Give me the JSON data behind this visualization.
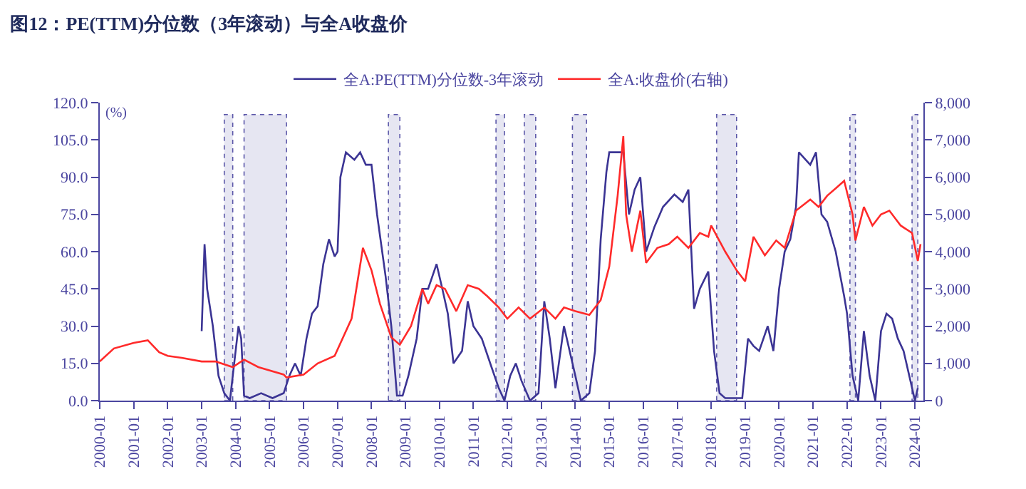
{
  "chart_data": {
    "type": "line",
    "title": "图12：PE(TTM)分位数（3年滚动）与全A收盘价",
    "ylabel": "(%)",
    "legend": "top",
    "grid": false,
    "line_style": "solid",
    "marker": "none",
    "xlim": [
      "2000-01",
      "2024-04"
    ],
    "xticks": [
      "2000-01",
      "2001-01",
      "2002-01",
      "2003-01",
      "2004-01",
      "2005-01",
      "2006-01",
      "2007-01",
      "2008-01",
      "2009-01",
      "2010-01",
      "2011-01",
      "2012-01",
      "2013-01",
      "2014-01",
      "2015-01",
      "2016-01",
      "2017-01",
      "2018-01",
      "2019-01",
      "2020-01",
      "2021-01",
      "2022-01",
      "2023-01",
      "2024-01"
    ],
    "ylim": [
      0,
      120
    ],
    "yticks": [
      {
        "value": 0,
        "label": "0.0"
      },
      {
        "value": 15,
        "label": "15.0"
      },
      {
        "value": 30,
        "label": "30.0"
      },
      {
        "value": 45,
        "label": "45.0"
      },
      {
        "value": 60,
        "label": "60.0"
      },
      {
        "value": 75,
        "label": "75.0"
      },
      {
        "value": 90,
        "label": "90.0"
      },
      {
        "value": 105,
        "label": "105.0"
      },
      {
        "value": 120,
        "label": "120.0"
      }
    ],
    "y2lim": [
      0,
      8000
    ],
    "y2ticks": [
      0,
      {
        "value": 1000,
        "label": "1,000"
      },
      {
        "value": 2000,
        "label": "2,000"
      },
      {
        "value": 3000,
        "label": "3,000"
      },
      {
        "value": 4000,
        "label": "4,000"
      },
      {
        "value": 5000,
        "label": "5,000"
      },
      {
        "value": 6000,
        "label": "6,000"
      },
      {
        "value": 7000,
        "label": "7,000"
      },
      {
        "value": 8000,
        "label": "8,000"
      }
    ],
    "bands": [
      {
        "axis": "x",
        "from": "2003-09",
        "to": "2003-12",
        "color": "#e6e6f2"
      },
      {
        "axis": "x",
        "from": "2004-04",
        "to": "2005-07",
        "color": "#e6e6f2"
      },
      {
        "axis": "x",
        "from": "2008-07",
        "to": "2008-11",
        "color": "#e6e6f2"
      },
      {
        "axis": "x",
        "from": "2011-09",
        "to": "2011-12",
        "color": "#e6e6f2"
      },
      {
        "axis": "x",
        "from": "2012-07",
        "to": "2012-11",
        "color": "#e6e6f2"
      },
      {
        "axis": "x",
        "from": "2013-12",
        "to": "2014-05",
        "color": "#e6e6f2"
      },
      {
        "axis": "x",
        "from": "2018-03",
        "to": "2018-10",
        "color": "#e6e6f2"
      },
      {
        "axis": "x",
        "from": "2022-02",
        "to": "2022-04",
        "color": "#e6e6f2"
      },
      {
        "axis": "x",
        "from": "2023-12",
        "to": "2024-02",
        "color": "#e6e6f2"
      }
    ],
    "series": [
      {
        "name": "全A:PE(TTM)分位数-3年滚动",
        "color": "#3b3494",
        "x": [
          "2003-01",
          "2003-02",
          "2003-03",
          "2003-05",
          "2003-07",
          "2003-09",
          "2003-11",
          "2004-01",
          "2004-02",
          "2004-03",
          "2004-04",
          "2004-06",
          "2004-10",
          "2005-02",
          "2005-06",
          "2005-08",
          "2005-10",
          "2005-12",
          "2006-02",
          "2006-04",
          "2006-06",
          "2006-08",
          "2006-10",
          "2006-12",
          "2007-01",
          "2007-02",
          "2007-04",
          "2007-07",
          "2007-09",
          "2007-11",
          "2008-01",
          "2008-03",
          "2008-06",
          "2008-08",
          "2008-10",
          "2008-12",
          "2009-02",
          "2009-05",
          "2009-07",
          "2009-09",
          "2009-12",
          "2010-02",
          "2010-04",
          "2010-06",
          "2010-09",
          "2010-11",
          "2011-01",
          "2011-04",
          "2011-07",
          "2011-10",
          "2011-12",
          "2012-02",
          "2012-04",
          "2012-06",
          "2012-09",
          "2012-12",
          "2013-02",
          "2013-04",
          "2013-06",
          "2013-09",
          "2013-11",
          "2014-01",
          "2014-03",
          "2014-06",
          "2014-08",
          "2014-10",
          "2014-12",
          "2015-01",
          "2015-06",
          "2015-08",
          "2015-10",
          "2015-12",
          "2016-02",
          "2016-05",
          "2016-08",
          "2016-12",
          "2017-03",
          "2017-05",
          "2017-07",
          "2017-09",
          "2017-12",
          "2018-02",
          "2018-04",
          "2018-06",
          "2018-12",
          "2019-02",
          "2019-04",
          "2019-06",
          "2019-09",
          "2019-11",
          "2020-01",
          "2020-03",
          "2020-05",
          "2020-07",
          "2020-08",
          "2020-12",
          "2021-02",
          "2021-04",
          "2021-06",
          "2021-09",
          "2021-12",
          "2022-01",
          "2022-03",
          "2022-05",
          "2022-07",
          "2022-09",
          "2022-11",
          "2023-01",
          "2023-03",
          "2023-05",
          "2023-07",
          "2023-09",
          "2023-11",
          "2024-01",
          "2024-02"
        ],
        "values": [
          28,
          63,
          45,
          30,
          10,
          3,
          0,
          20,
          30,
          25,
          2,
          1,
          3,
          1,
          3,
          10,
          15,
          10,
          25,
          35,
          38,
          55,
          65,
          58,
          60,
          90,
          100,
          97,
          100,
          95,
          95,
          75,
          50,
          30,
          2,
          2,
          10,
          25,
          45,
          45,
          55,
          45,
          35,
          15,
          20,
          40,
          30,
          25,
          15,
          5,
          0,
          10,
          15,
          8,
          0,
          3,
          40,
          25,
          5,
          30,
          20,
          10,
          0,
          3,
          20,
          65,
          92,
          100,
          100,
          75,
          85,
          90,
          60,
          70,
          78,
          83,
          80,
          85,
          37,
          45,
          52,
          20,
          3,
          1,
          1,
          25,
          22,
          20,
          30,
          20,
          45,
          60,
          65,
          78,
          100,
          95,
          100,
          75,
          72,
          60,
          42,
          35,
          10,
          0,
          28,
          10,
          0,
          28,
          35,
          33,
          25,
          20,
          10,
          0,
          5
        ]
      },
      {
        "name": "全A:收盘价(右轴)",
        "color": "#ff2a2a",
        "axis": "y2",
        "x": [
          "2000-01",
          "2000-06",
          "2001-01",
          "2001-06",
          "2001-10",
          "2002-01",
          "2002-06",
          "2003-01",
          "2003-06",
          "2003-12",
          "2004-04",
          "2004-09",
          "2005-06",
          "2005-07",
          "2006-01",
          "2006-06",
          "2006-12",
          "2007-06",
          "2007-10",
          "2008-01",
          "2008-04",
          "2008-08",
          "2008-11",
          "2009-03",
          "2009-07",
          "2009-09",
          "2009-12",
          "2010-03",
          "2010-07",
          "2010-11",
          "2011-03",
          "2011-06",
          "2011-10",
          "2012-01",
          "2012-05",
          "2012-09",
          "2013-02",
          "2013-06",
          "2013-09",
          "2014-01",
          "2014-06",
          "2014-10",
          "2015-01",
          "2015-04",
          "2015-06",
          "2015-07",
          "2015-09",
          "2015-12",
          "2016-02",
          "2016-06",
          "2016-10",
          "2017-01",
          "2017-05",
          "2017-09",
          "2017-12",
          "2018-01",
          "2018-06",
          "2018-10",
          "2019-01",
          "2019-04",
          "2019-08",
          "2019-12",
          "2020-03",
          "2020-07",
          "2020-12",
          "2021-03",
          "2021-06",
          "2021-09",
          "2021-12",
          "2022-03",
          "2022-04",
          "2022-07",
          "2022-10",
          "2023-01",
          "2023-04",
          "2023-08",
          "2023-12",
          "2024-02",
          "2024-03"
        ],
        "values": [
          1050,
          1400,
          1550,
          1620,
          1300,
          1200,
          1150,
          1050,
          1050,
          900,
          1100,
          900,
          700,
          620,
          700,
          1000,
          1200,
          2200,
          4100,
          3500,
          2600,
          1700,
          1500,
          2000,
          3000,
          2600,
          3100,
          3000,
          2400,
          3100,
          3000,
          2800,
          2500,
          2200,
          2500,
          2200,
          2500,
          2200,
          2500,
          2400,
          2300,
          2700,
          3600,
          5500,
          7100,
          5000,
          4000,
          5100,
          3700,
          4100,
          4200,
          4400,
          4100,
          4500,
          4400,
          4700,
          4000,
          3500,
          3200,
          4400,
          3900,
          4300,
          4100,
          5100,
          5400,
          5200,
          5500,
          5700,
          5900,
          5000,
          4300,
          5200,
          4700,
          5000,
          5100,
          4700,
          4500,
          3750,
          4200
        ]
      }
    ]
  }
}
